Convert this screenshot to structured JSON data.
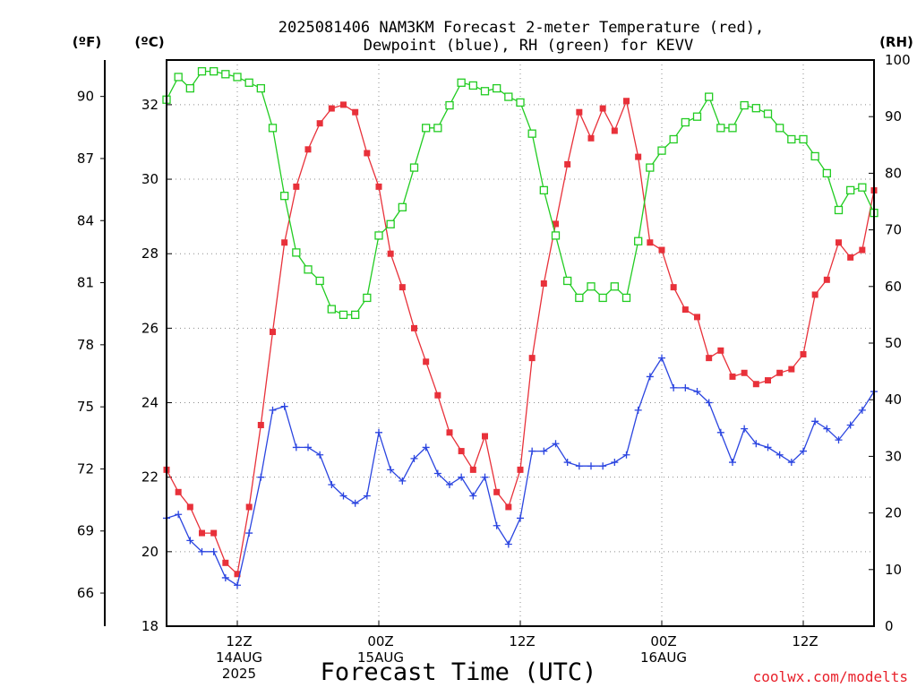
{
  "chart_data": {
    "type": "line",
    "title_lines": [
      "2025081406 NAM3KM Forecast 2-meter Temperature (red),",
      "Dewpoint (blue), RH (green) for KEVV"
    ],
    "xlabel": "Forecast Time (UTC)",
    "credit": "coolwx.com/modelts",
    "units": {
      "f": "(ºF)",
      "c": "(ºC)",
      "rh": "(RH)"
    },
    "x_range_hours": [
      6,
      66
    ],
    "x_ticks": [
      {
        "hour": 12,
        "lines": [
          "12Z",
          "14AUG",
          "2025"
        ]
      },
      {
        "hour": 24,
        "lines": [
          "00Z",
          "15AUG"
        ]
      },
      {
        "hour": 36,
        "lines": [
          "12Z"
        ]
      },
      {
        "hour": 48,
        "lines": [
          "00Z",
          "16AUG"
        ]
      },
      {
        "hour": 60,
        "lines": [
          "12Z"
        ]
      }
    ],
    "y_left_c": {
      "min": 18,
      "max": 33.2,
      "ticks": [
        "18",
        "20",
        "22",
        "24",
        "26",
        "28",
        "30",
        "32"
      ]
    },
    "y_left_f": {
      "ticks": [
        "66",
        "69",
        "72",
        "75",
        "78",
        "81",
        "84",
        "87",
        "90"
      ]
    },
    "y_right_rh": {
      "min": 0,
      "max": 100,
      "ticks": [
        "0",
        "10",
        "20",
        "30",
        "40",
        "50",
        "60",
        "70",
        "80",
        "90",
        "100"
      ]
    },
    "grid": true,
    "series": [
      {
        "name": "Temperature",
        "axis": "c",
        "color": "#e8313a",
        "marker": "square-filled",
        "values": [
          22.2,
          21.6,
          21.2,
          20.5,
          20.5,
          19.7,
          19.4,
          21.2,
          23.4,
          25.9,
          28.3,
          29.8,
          30.8,
          31.5,
          31.9,
          32.0,
          31.8,
          30.7,
          29.8,
          28.0,
          27.1,
          26.0,
          25.1,
          24.2,
          23.2,
          22.7,
          22.2,
          23.1,
          21.6,
          21.2,
          22.2,
          25.2,
          27.2,
          28.8,
          30.4,
          31.8,
          31.1,
          31.9,
          31.3,
          32.1,
          30.6,
          28.3,
          28.1,
          27.1,
          26.5,
          26.3,
          25.2,
          25.4,
          24.7,
          24.8,
          24.5,
          24.6,
          24.8,
          24.9,
          25.3,
          26.9,
          27.3,
          28.3,
          27.9,
          28.1,
          29.7
        ]
      },
      {
        "name": "Dewpoint",
        "axis": "c",
        "color": "#2b45e0",
        "marker": "plus",
        "values": [
          20.9,
          21.0,
          20.3,
          20.0,
          20.0,
          19.3,
          19.1,
          20.5,
          22.0,
          23.8,
          23.9,
          22.8,
          22.8,
          22.6,
          21.8,
          21.5,
          21.3,
          21.5,
          23.2,
          22.2,
          21.9,
          22.5,
          22.8,
          22.1,
          21.8,
          22.0,
          21.5,
          22.0,
          20.7,
          20.2,
          20.9,
          22.7,
          22.7,
          22.9,
          22.4,
          22.3,
          22.3,
          22.3,
          22.4,
          22.6,
          23.8,
          24.7,
          25.2,
          24.4,
          24.4,
          24.3,
          24.0,
          23.2,
          22.4,
          23.3,
          22.9,
          22.8,
          22.6,
          22.4,
          22.7,
          23.5,
          23.3,
          23.0,
          23.4,
          23.8,
          24.3
        ]
      },
      {
        "name": "RH",
        "axis": "rh",
        "color": "#22cc22",
        "marker": "square-open",
        "values": [
          93,
          97,
          95,
          98,
          98,
          97.5,
          97,
          96,
          95,
          88,
          76,
          66,
          63,
          61,
          56,
          55,
          55,
          58,
          69,
          71,
          74,
          81,
          88,
          88,
          92,
          96,
          95.5,
          94.5,
          95,
          93.5,
          92.5,
          87,
          77,
          69,
          61,
          58,
          60,
          58,
          60,
          58,
          68,
          81,
          84,
          86,
          89,
          90,
          93.5,
          88,
          88,
          92,
          91.5,
          90.5,
          88,
          86,
          86,
          83,
          80,
          73.5,
          77,
          77.5,
          73
        ]
      }
    ]
  }
}
